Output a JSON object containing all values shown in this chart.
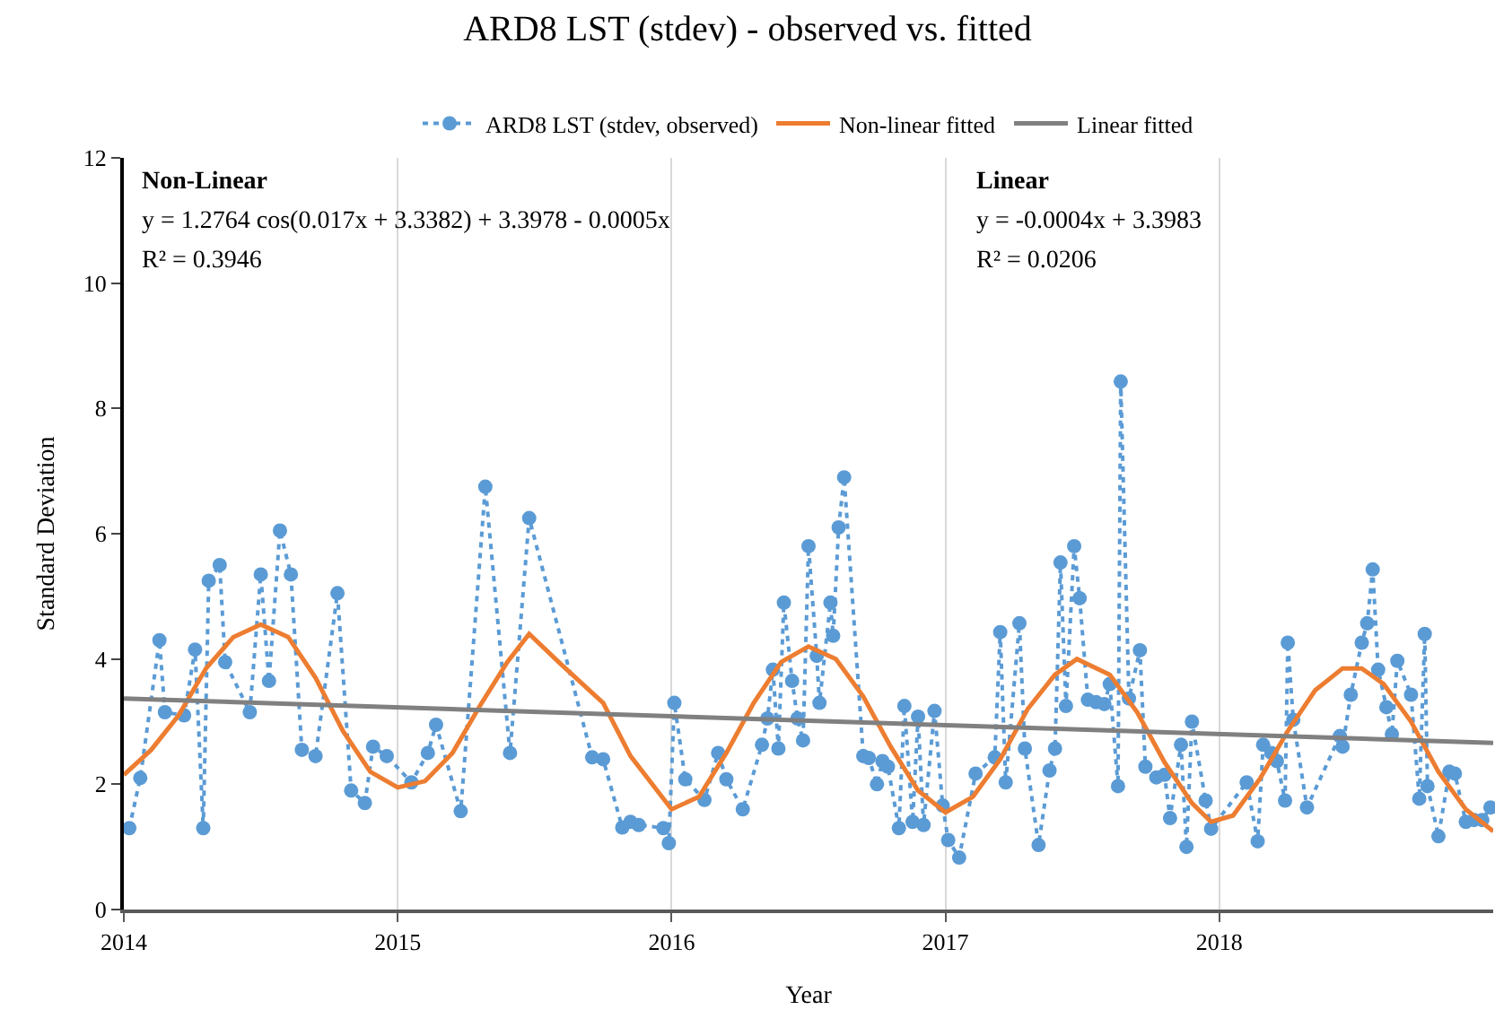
{
  "chart_data": {
    "type": "line",
    "title": "ARD8 LST (stdev) - observed vs. fitted",
    "xlabel": "Year",
    "ylabel": "Standard Deviation",
    "xlim": [
      2014,
      2019
    ],
    "xticks": [
      2014,
      2015,
      2016,
      2017,
      2018
    ],
    "ylim": [
      0,
      12
    ],
    "yticks": [
      0,
      2,
      4,
      6,
      8,
      10,
      12
    ],
    "grid": "x",
    "legend": "top",
    "annotations": [
      "Non-Linear",
      "y = 1.2764 cos(0.017x + 3.3382) + 3.3978 - 0.0005x",
      "R² = 0.3946",
      "Linear",
      "y = -0.0004x + 3.3983",
      "R² = 0.0206"
    ],
    "series": [
      {
        "name": "ARD8 LST (stdev, observed)",
        "color": "#5b9bd5",
        "marker": "circle",
        "line_style": "dotted",
        "x": [
          2014.02,
          2014.06,
          2014.13,
          2014.15,
          2014.22,
          2014.26,
          2014.29,
          2014.31,
          2014.35,
          2014.37,
          2014.46,
          2014.5,
          2014.53,
          2014.57,
          2014.61,
          2014.65,
          2014.7,
          2014.78,
          2014.83,
          2014.88,
          2014.91,
          2014.96,
          2015.05,
          2015.11,
          2015.14,
          2015.23,
          2015.32,
          2015.41,
          2015.48,
          2015.71,
          2015.75,
          2015.82,
          2015.85,
          2015.88,
          2015.97,
          2015.99,
          2016.01,
          2016.05,
          2016.12,
          2016.17,
          2016.2,
          2016.26,
          2016.33,
          2016.35,
          2016.37,
          2016.39,
          2016.41,
          2016.44,
          2016.46,
          2016.48,
          2016.5,
          2016.53,
          2016.54,
          2016.58,
          2016.59,
          2016.61,
          2016.63,
          2016.7,
          2016.72,
          2016.75,
          2016.77,
          2016.79,
          2016.83,
          2016.85,
          2016.88,
          2016.9,
          2016.92,
          2016.96,
          2016.99,
          2017.01,
          2017.05,
          2017.11,
          2017.18,
          2017.2,
          2017.22,
          2017.27,
          2017.29,
          2017.34,
          2017.38,
          2017.4,
          2017.42,
          2017.44,
          2017.47,
          2017.49,
          2017.52,
          2017.55,
          2017.58,
          2017.6,
          2017.63,
          2017.64,
          2017.67,
          2017.71,
          2017.73,
          2017.77,
          2017.8,
          2017.82,
          2017.86,
          2017.88,
          2017.9,
          2017.95,
          2017.97,
          2018.1,
          2018.14,
          2018.16,
          2018.19,
          2018.21,
          2018.24,
          2018.25,
          2018.27,
          2018.32,
          2018.44,
          2018.45,
          2018.48,
          2018.52,
          2018.54,
          2018.56,
          2018.58,
          2018.61,
          2018.63,
          2018.65,
          2018.7,
          2018.73,
          2018.75,
          2018.76,
          2018.8,
          2018.84,
          2018.86,
          2018.9,
          2018.93,
          2018.96,
          2018.99
        ],
        "values": [
          1.3,
          2.1,
          4.3,
          3.15,
          3.1,
          4.15,
          1.3,
          5.25,
          5.5,
          3.95,
          3.15,
          5.35,
          3.65,
          6.05,
          5.35,
          2.55,
          2.45,
          5.05,
          1.9,
          1.7,
          2.6,
          2.45,
          2.03,
          2.5,
          2.95,
          1.57,
          6.75,
          2.5,
          6.25,
          2.43,
          2.4,
          1.31,
          1.4,
          1.35,
          1.3,
          1.06,
          3.3,
          2.08,
          1.75,
          2.5,
          2.08,
          1.6,
          2.63,
          3.05,
          3.83,
          2.57,
          4.9,
          3.65,
          3.05,
          2.7,
          5.8,
          4.05,
          3.3,
          4.9,
          4.37,
          6.1,
          6.9,
          2.45,
          2.42,
          2.0,
          2.37,
          2.28,
          1.3,
          3.25,
          1.4,
          3.08,
          1.35,
          3.17,
          1.66,
          1.11,
          0.83,
          2.17,
          2.43,
          4.43,
          2.03,
          4.57,
          2.57,
          1.03,
          2.22,
          2.57,
          5.54,
          3.25,
          5.8,
          4.97,
          3.35,
          3.31,
          3.28,
          3.6,
          1.97,
          8.43,
          3.37,
          4.14,
          2.28,
          2.11,
          2.15,
          1.46,
          2.63,
          1.0,
          3.0,
          1.74,
          1.29,
          2.03,
          1.09,
          2.63,
          2.5,
          2.37,
          1.74,
          4.26,
          3.03,
          1.63,
          2.77,
          2.6,
          3.43,
          4.26,
          4.57,
          5.43,
          3.83,
          3.23,
          2.8,
          3.97,
          3.43,
          1.77,
          4.4,
          1.97,
          1.17,
          2.2,
          2.17,
          1.4,
          1.43,
          1.43,
          1.63
        ]
      },
      {
        "name": "Non-linear fitted",
        "color": "#ed7d31",
        "marker": "none",
        "line_style": "solid",
        "x": [
          2014.0,
          2014.1,
          2014.2,
          2014.3,
          2014.4,
          2014.5,
          2014.6,
          2014.7,
          2014.8,
          2014.9,
          2015.0,
          2015.1,
          2015.2,
          2015.3,
          2015.4,
          2015.48,
          2015.6,
          2015.75,
          2015.85,
          2016.0,
          2016.1,
          2016.2,
          2016.3,
          2016.4,
          2016.5,
          2016.6,
          2016.7,
          2016.8,
          2016.9,
          2017.0,
          2017.1,
          2017.2,
          2017.3,
          2017.4,
          2017.48,
          2017.6,
          2017.7,
          2017.8,
          2017.9,
          2017.97,
          2018.05,
          2018.15,
          2018.25,
          2018.35,
          2018.45,
          2018.52,
          2018.6,
          2018.7,
          2018.8,
          2018.9,
          2019.0
        ],
        "values": [
          2.15,
          2.55,
          3.1,
          3.85,
          4.35,
          4.55,
          4.35,
          3.7,
          2.85,
          2.2,
          1.95,
          2.05,
          2.5,
          3.25,
          3.95,
          4.4,
          3.9,
          3.3,
          2.45,
          1.6,
          1.8,
          2.5,
          3.3,
          3.95,
          4.2,
          4.0,
          3.4,
          2.6,
          1.9,
          1.55,
          1.8,
          2.4,
          3.2,
          3.75,
          4.0,
          3.75,
          3.15,
          2.35,
          1.7,
          1.4,
          1.5,
          2.1,
          2.85,
          3.5,
          3.85,
          3.85,
          3.6,
          3.0,
          2.2,
          1.6,
          1.25
        ]
      },
      {
        "name": "Linear fitted",
        "color": "#808080",
        "marker": "none",
        "line_style": "solid",
        "x": [
          2014,
          2019
        ],
        "values": [
          3.37,
          2.66
        ]
      }
    ]
  }
}
